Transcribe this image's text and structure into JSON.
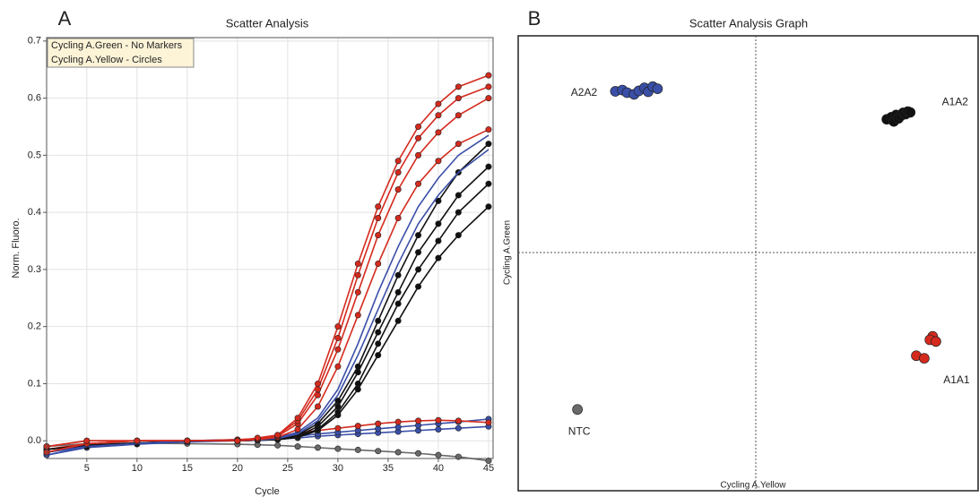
{
  "chart_data": [
    {
      "type": "line",
      "panel_label": "A",
      "title": "Scatter Analysis",
      "x_label": "Cycle",
      "y_label": "Norm. Fluoro.",
      "legend": [
        "Cycling A.Green - No Markers",
        "Cycling A.Yellow - Circles"
      ],
      "xlim": [
        1,
        45.45
      ],
      "ylim": [
        -0.031,
        0.706
      ],
      "grid": true,
      "xticks": [
        5,
        10,
        15,
        20,
        25,
        30,
        35,
        40,
        45
      ],
      "yticks": [
        {
          "value": 0,
          "label": "0.0"
        },
        0.1,
        0.2,
        0.3,
        0.4,
        0.5,
        0.6,
        0.7
      ],
      "x": [
        1,
        5,
        10,
        15,
        20,
        22,
        24,
        26,
        28,
        30,
        32,
        34,
        36,
        38,
        40,
        42,
        45
      ],
      "series": [
        {
          "color": "#6a6a6a",
          "marker": "circle",
          "values": [
            -0.01,
            -0.005,
            -0.004,
            -0.005,
            -0.006,
            -0.007,
            -0.008,
            -0.01,
            -0.012,
            -0.014,
            -0.016,
            -0.018,
            -0.02,
            -0.022,
            -0.025,
            -0.028,
            -0.035
          ]
        },
        {
          "color": "#3a4fa8",
          "marker": "circle",
          "values": [
            -0.025,
            -0.012,
            -0.006,
            -0.002,
            0,
            0.001,
            0.003,
            0.005,
            0.008,
            0.01,
            0.012,
            0.014,
            0.016,
            0.018,
            0.02,
            0.022,
            0.025
          ]
        },
        {
          "color": "#3a4fa8",
          "marker": "circle",
          "values": [
            -0.02,
            -0.008,
            -0.004,
            0,
            0.002,
            0.003,
            0.005,
            0.008,
            0.012,
            0.015,
            0.018,
            0.021,
            0.024,
            0.027,
            0.03,
            0.033,
            0.038
          ]
        },
        {
          "color": "#d42a1e",
          "marker": "circle",
          "values": [
            -0.015,
            -0.005,
            0,
            0,
            0.002,
            0.004,
            0.008,
            0.013,
            0.018,
            0.022,
            0.026,
            0.03,
            0.033,
            0.035,
            0.036,
            0.035,
            0.032
          ]
        },
        {
          "color": "#111111",
          "marker": "circle",
          "values": [
            -0.015,
            -0.008,
            -0.004,
            0,
            0,
            0.001,
            0.002,
            0.006,
            0.018,
            0.045,
            0.09,
            0.15,
            0.21,
            0.27,
            0.32,
            0.36,
            0.41
          ]
        },
        {
          "color": "#111111",
          "marker": "circle",
          "values": [
            -0.015,
            -0.008,
            -0.004,
            0,
            0,
            0.001,
            0.002,
            0.007,
            0.02,
            0.05,
            0.1,
            0.17,
            0.24,
            0.3,
            0.35,
            0.4,
            0.45
          ]
        },
        {
          "color": "#111111",
          "marker": "circle",
          "values": [
            -0.02,
            -0.01,
            -0.005,
            0,
            0,
            0.001,
            0.003,
            0.008,
            0.025,
            0.06,
            0.12,
            0.19,
            0.26,
            0.33,
            0.38,
            0.43,
            0.48
          ]
        },
        {
          "color": "#111111",
          "marker": "circle",
          "values": [
            -0.02,
            -0.01,
            -0.005,
            0,
            0,
            0.001,
            0.004,
            0.01,
            0.03,
            0.07,
            0.13,
            0.21,
            0.29,
            0.36,
            0.42,
            0.47,
            0.52
          ]
        },
        {
          "color": "#3a4fa8",
          "marker": "none",
          "values": [
            -0.025,
            -0.01,
            -0.005,
            0,
            0,
            0.001,
            0.004,
            0.012,
            0.035,
            0.08,
            0.15,
            0.23,
            0.31,
            0.38,
            0.43,
            0.47,
            0.51
          ]
        },
        {
          "color": "#3a4fa8",
          "marker": "none",
          "values": [
            -0.02,
            -0.01,
            -0.005,
            0,
            0,
            0.002,
            0.005,
            0.015,
            0.04,
            0.09,
            0.17,
            0.26,
            0.34,
            0.41,
            0.46,
            0.5,
            0.535
          ]
        },
        {
          "color": "#d42a1e",
          "marker": "circle",
          "values": [
            -0.02,
            -0.005,
            0,
            0,
            0,
            0.002,
            0.006,
            0.02,
            0.06,
            0.13,
            0.22,
            0.31,
            0.39,
            0.45,
            0.49,
            0.52,
            0.545
          ]
        },
        {
          "color": "#d42a1e",
          "marker": "circle",
          "values": [
            -0.02,
            -0.005,
            0,
            0,
            0,
            0.003,
            0.008,
            0.03,
            0.08,
            0.16,
            0.26,
            0.36,
            0.44,
            0.5,
            0.54,
            0.57,
            0.6
          ]
        },
        {
          "color": "#d42a1e",
          "marker": "circle",
          "values": [
            -0.01,
            0,
            0,
            0,
            0,
            0.004,
            0.01,
            0.035,
            0.09,
            0.18,
            0.29,
            0.39,
            0.47,
            0.53,
            0.57,
            0.6,
            0.62
          ]
        },
        {
          "color": "#d42a1e",
          "marker": "circle",
          "values": [
            -0.01,
            0,
            0,
            0,
            0,
            0.005,
            0.01,
            0.04,
            0.1,
            0.2,
            0.31,
            0.41,
            0.49,
            0.55,
            0.59,
            0.62,
            0.64
          ]
        }
      ]
    },
    {
      "type": "scatter",
      "panel_label": "B",
      "title": "Scatter Analysis Graph",
      "x_label": "Cycling A.Yellow",
      "y_label": "Cycling A.Green",
      "xlim": [
        0,
        1
      ],
      "ylim": [
        0,
        1
      ],
      "series": [
        {
          "name": "A2A2",
          "color": "#3a4fa8",
          "x": [
            0.2,
            0.215,
            0.225,
            0.24,
            0.25,
            0.262,
            0.27,
            0.28,
            0.29
          ],
          "values": [
            0.875,
            0.878,
            0.872,
            0.868,
            0.876,
            0.883,
            0.874,
            0.886,
            0.881
          ]
        },
        {
          "name": "A1A2",
          "color": "#111111",
          "x": [
            0.78,
            0.79,
            0.795,
            0.8,
            0.805,
            0.81,
            0.815,
            0.82,
            0.825,
            0.83
          ],
          "values": [
            0.81,
            0.815,
            0.805,
            0.82,
            0.812,
            0.818,
            0.825,
            0.822,
            0.828,
            0.826
          ]
        },
        {
          "name": "A1A1",
          "color": "#d42a1e",
          "x": [
            0.878,
            0.872,
            0.885,
            0.843,
            0.86
          ],
          "values": [
            0.305,
            0.297,
            0.293,
            0.26,
            0.254
          ]
        },
        {
          "name": "NTC",
          "color": "#6a6a6a",
          "x": [
            0.119
          ],
          "values": [
            0.135
          ]
        }
      ]
    }
  ]
}
